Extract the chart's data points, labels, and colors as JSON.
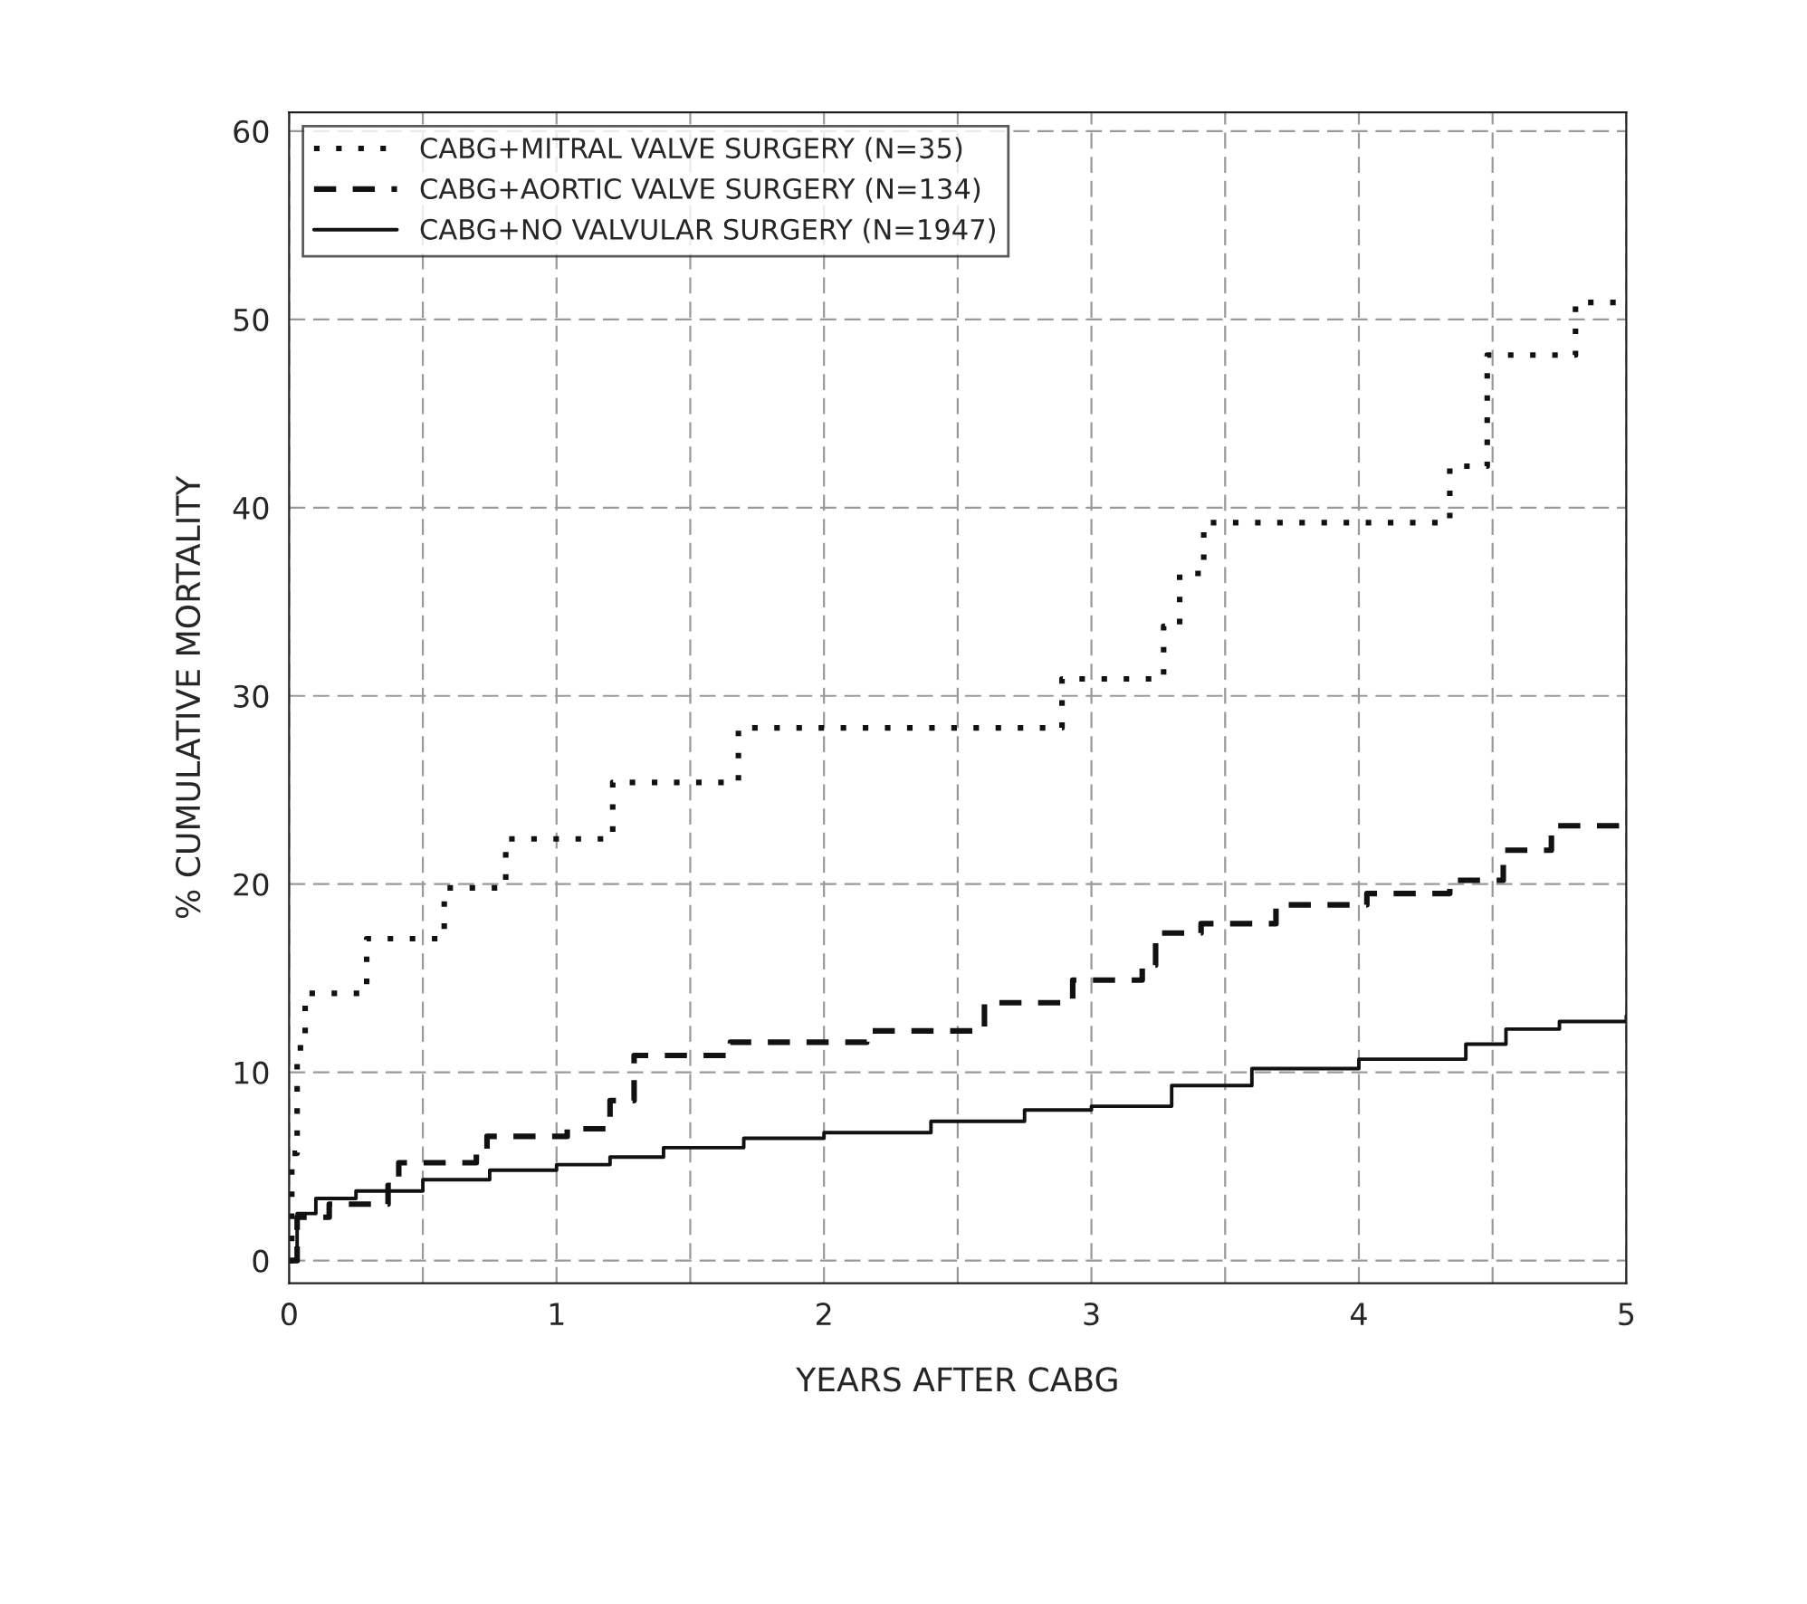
{
  "chart_data": {
    "type": "step",
    "xlabel": "YEARS AFTER CABG",
    "ylabel": "% CUMULATIVE MORTALITY",
    "xlim": [
      0,
      5
    ],
    "ylim": [
      -1.2,
      61
    ],
    "xticks": [
      0,
      {
        "value": 0.5,
        "label": null
      },
      1,
      {
        "value": 1.5,
        "label": null
      },
      2,
      {
        "value": 2.5,
        "label": null
      },
      3,
      {
        "value": 3.5,
        "label": null
      },
      4,
      {
        "value": 4.5,
        "label": null
      },
      5
    ],
    "yticks": [
      0,
      10,
      20,
      30,
      40,
      50,
      60
    ],
    "grid": true,
    "legend": "top left",
    "marker": "none",
    "series": [
      {
        "name": "CABG+MITRAL VALVE SURGERY (N=35)",
        "color": "#111111",
        "line_style": "dotted",
        "x": [
          0,
          0.01,
          0.03,
          0.06,
          0.29,
          0.58,
          0.81,
          1.21,
          1.68,
          2.89,
          3.27,
          3.33,
          3.42,
          4.34,
          4.48,
          4.81,
          5.0
        ],
        "values": [
          0,
          5.7,
          11.3,
          14.2,
          17.1,
          19.8,
          22.4,
          25.4,
          28.3,
          30.9,
          33.7,
          36.5,
          39.2,
          42.2,
          48.1,
          50.9,
          50.9
        ]
      },
      {
        "name": "CABG+AORTIC VALVE SURGERY (N=134)",
        "color": "#111111",
        "line_style": "dashed",
        "x": [
          0,
          0.03,
          0.15,
          0.37,
          0.41,
          0.7,
          0.74,
          1.04,
          1.2,
          1.29,
          1.65,
          2.16,
          2.6,
          2.93,
          3.19,
          3.24,
          3.41,
          3.69,
          4.03,
          4.34,
          4.54,
          4.72,
          5.0
        ],
        "values": [
          0,
          2.3,
          3.0,
          4.0,
          5.2,
          5.7,
          6.6,
          7.0,
          8.5,
          10.9,
          11.6,
          12.2,
          13.7,
          14.9,
          15.7,
          17.4,
          17.9,
          18.9,
          19.5,
          20.2,
          21.8,
          23.1,
          23.1
        ]
      },
      {
        "name": "CABG+NO VALVULAR SURGERY (N=1947)",
        "color": "#111111",
        "line_style": "solid",
        "x": [
          0,
          0.03,
          0.1,
          0.25,
          0.5,
          0.75,
          1.0,
          1.2,
          1.4,
          1.7,
          2.0,
          2.4,
          2.75,
          3.0,
          3.3,
          3.6,
          4.0,
          4.4,
          4.55,
          4.75,
          5.0
        ],
        "values": [
          0,
          2.5,
          3.3,
          3.7,
          4.3,
          4.8,
          5.1,
          5.5,
          6.0,
          6.5,
          6.8,
          7.4,
          8.0,
          8.2,
          9.3,
          10.2,
          10.7,
          11.5,
          12.3,
          12.7,
          13.0
        ]
      }
    ]
  }
}
